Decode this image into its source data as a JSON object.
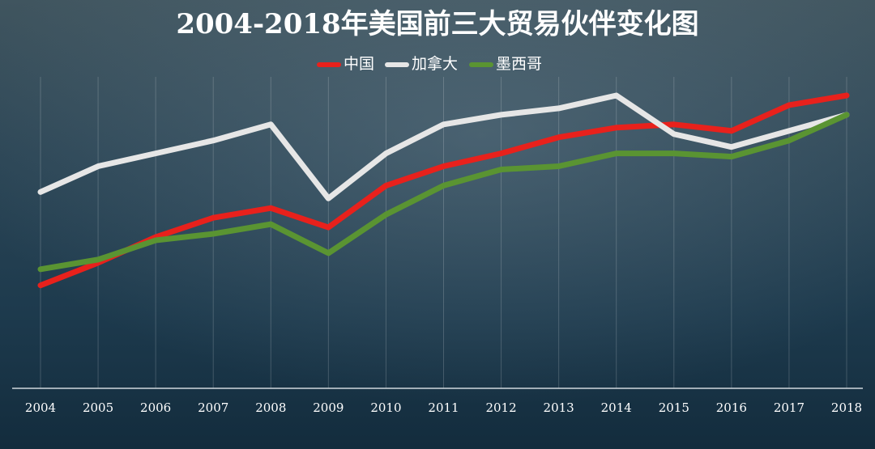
{
  "chart_data": {
    "type": "line",
    "title": "2004-2018年美国前三大贸易伙伴变化图",
    "categories": [
      "2004",
      "2005",
      "2006",
      "2007",
      "2008",
      "2009",
      "2010",
      "2011",
      "2012",
      "2013",
      "2014",
      "2015",
      "2016",
      "2017",
      "2018"
    ],
    "series": [
      {
        "name": "中国",
        "color": "#e8211c",
        "values": [
          32,
          39,
          47,
          53,
          56,
          50,
          63,
          69,
          73,
          78,
          81,
          82,
          80,
          88,
          91
        ]
      },
      {
        "name": "加拿大",
        "color": "#e6e6e6",
        "values": [
          61,
          69,
          73,
          77,
          82,
          59,
          73,
          82,
          85,
          87,
          91,
          79,
          75,
          80,
          85
        ]
      },
      {
        "name": "墨西哥",
        "color": "#5a9432",
        "values": [
          37,
          40,
          46,
          48,
          51,
          42,
          54,
          63,
          68,
          69,
          73,
          73,
          72,
          77,
          85
        ]
      }
    ]
  }
}
